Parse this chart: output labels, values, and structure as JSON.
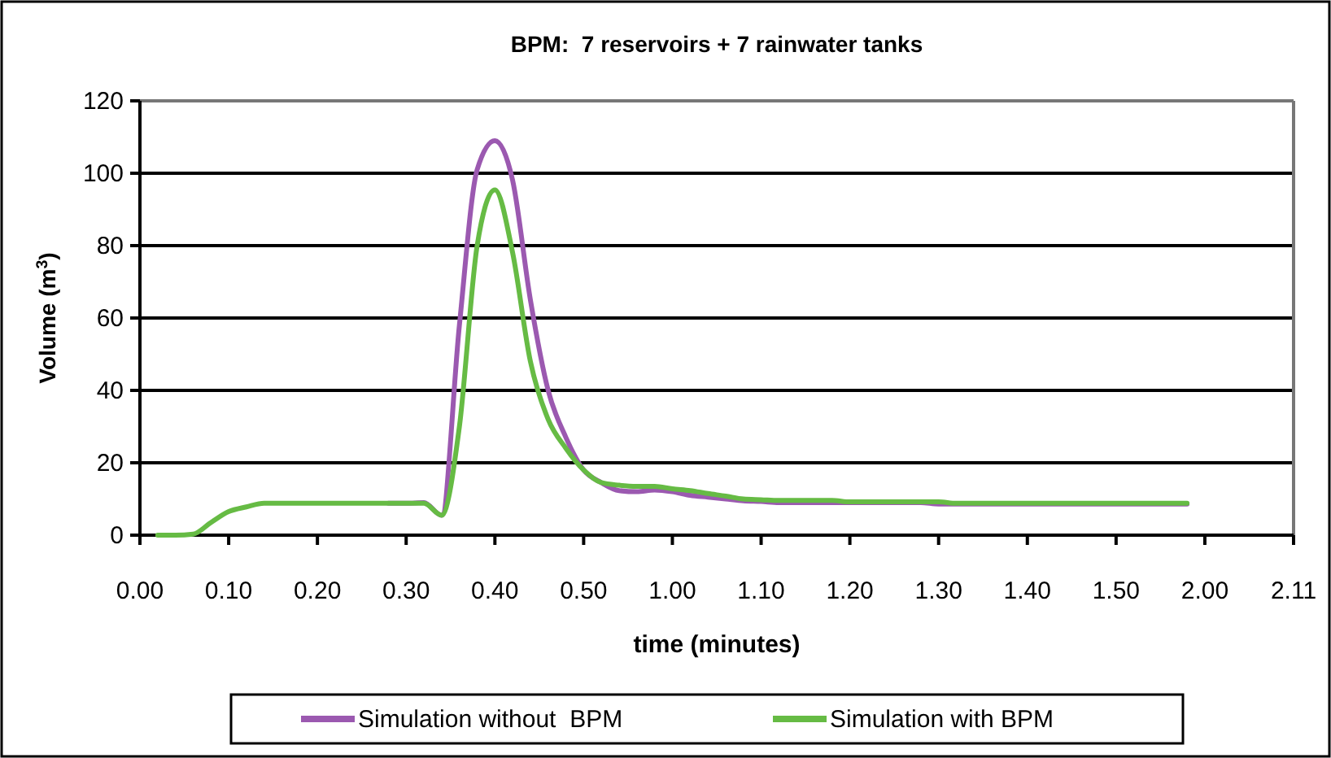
{
  "chart_data": {
    "type": "line",
    "title": "BPM:  7 reservoirs + 7 rainwater tanks",
    "xlabel": "time (minutes)",
    "ylabel": "Volume (m$^{3}$)",
    "categories": [
      "0.00",
      null,
      null,
      null,
      null,
      "0.10",
      null,
      null,
      null,
      null,
      "0.20",
      null,
      null,
      null,
      null,
      "0.30",
      null,
      null,
      null,
      null,
      "0.40",
      null,
      null,
      null,
      null,
      "0.50",
      null,
      null,
      null,
      null,
      "1.00",
      null,
      null,
      null,
      null,
      "1.10",
      null,
      null,
      null,
      null,
      "1.20",
      null,
      null,
      null,
      null,
      "1.30",
      null,
      null,
      null,
      null,
      "1.40",
      null,
      null,
      null,
      null,
      "1.50",
      null,
      null,
      null,
      null,
      "2.00",
      null,
      null,
      null,
      null,
      "2.11"
    ],
    "ylim": [
      0,
      120
    ],
    "yticks": [
      0,
      20,
      40,
      60,
      80,
      100,
      120
    ],
    "grid": "y",
    "legend": "bottom",
    "marker": "none",
    "line_style": "solid",
    "series": [
      {
        "name": "Simulation without  BPM",
        "color": "#9b59b0",
        "values": [
          null,
          null,
          null,
          null,
          null,
          null,
          null,
          null,
          null,
          null,
          null,
          null,
          null,
          null,
          8.8,
          8.8,
          9,
          5.5,
          58,
          101,
          109,
          98,
          65,
          40,
          27,
          18,
          14.5,
          12.3,
          12,
          12.5,
          12,
          11,
          10.5,
          10,
          9.5,
          9.3,
          9,
          9,
          9,
          9,
          9,
          9,
          9,
          9,
          9,
          8.6,
          8.6,
          8.6,
          8.6,
          8.6,
          8.6,
          8.6,
          8.6,
          8.6,
          8.6,
          8.6,
          8.6,
          8.6,
          8.6,
          8.6,
          null,
          null,
          null,
          null,
          null,
          null
        ]
      },
      {
        "name": "Simulation with BPM",
        "color": "#66bb44",
        "values": [
          null,
          0,
          0,
          0.3,
          3.5,
          6.5,
          7.8,
          8.8,
          8.8,
          8.8,
          8.8,
          8.8,
          8.8,
          8.8,
          8.8,
          8.8,
          8.8,
          5.5,
          30,
          80,
          95.4,
          78,
          48,
          32,
          24,
          18,
          14.5,
          13.8,
          13.5,
          13.5,
          12.8,
          12.3,
          11.5,
          10.8,
          10,
          9.8,
          9.6,
          9.6,
          9.6,
          9.6,
          9.2,
          9.2,
          9.2,
          9.2,
          9.2,
          9.2,
          8.8,
          8.8,
          8.8,
          8.8,
          8.8,
          8.8,
          8.8,
          8.8,
          8.8,
          8.8,
          8.8,
          8.8,
          8.8,
          8.8,
          null,
          null,
          null,
          null,
          null,
          null
        ]
      }
    ]
  }
}
